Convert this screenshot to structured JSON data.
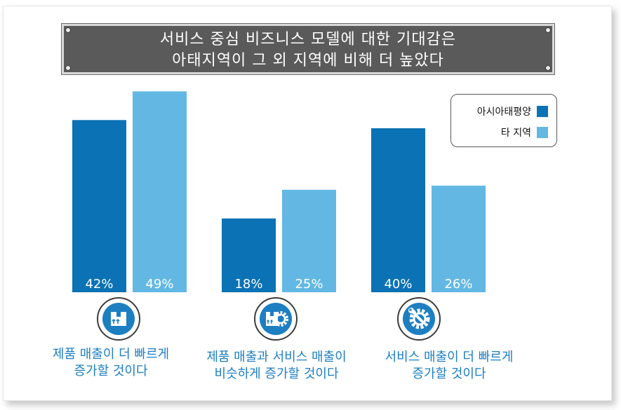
{
  "title": {
    "line1": "서비스 중심 비즈니스 모델에 대한 기대감은",
    "line2": "아태지역이 그 외 지역에 비해 더 높았다"
  },
  "legend": {
    "items": [
      {
        "label": "아시아태평양",
        "color": "#0b72b5"
      },
      {
        "label": "타 지역",
        "color": "#62b8e3"
      }
    ]
  },
  "groups": [
    {
      "label_line1": "제품 매출이 더 빠르게",
      "label_line2": "증가할 것이다",
      "icon": "box-icon"
    },
    {
      "label_line1": "제품 매출과 서비스 매출이",
      "label_line2": "비슷하게 증가할 것이다",
      "icon": "box-gear-icon"
    },
    {
      "label_line1": "서비스 매출이 더 빠르게",
      "label_line2": "증가할 것이다",
      "icon": "wrench-gear-icon"
    }
  ],
  "chart_data": {
    "type": "bar",
    "title": "서비스 중심 비즈니스 모델에 대한 기대감은 아태지역이 그 외 지역에 비해 더 높았다",
    "categories": [
      "제품 매출이 더 빠르게 증가할 것이다",
      "제품 매출과 서비스 매출이 비슷하게 증가할 것이다",
      "서비스 매출이 더 빠르게 증가할 것이다"
    ],
    "series": [
      {
        "name": "아시아태평양",
        "values": [
          42,
          18,
          40
        ],
        "labels": [
          "42%",
          "18%",
          "40%"
        ],
        "color": "#0b72b5"
      },
      {
        "name": "타 지역",
        "values": [
          49,
          25,
          26
        ],
        "labels": [
          "49%",
          "25%",
          "26%"
        ],
        "color": "#62b8e3"
      }
    ],
    "ylim": [
      0,
      50
    ],
    "legend_position": "top-right",
    "grid": false
  }
}
